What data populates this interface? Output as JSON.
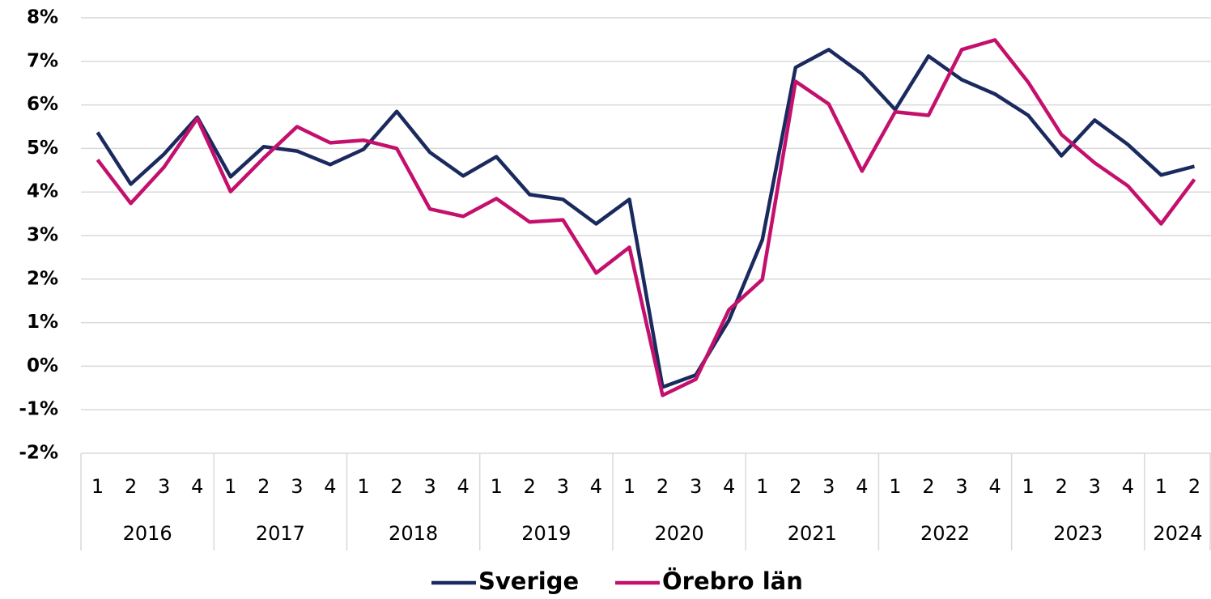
{
  "chart_data": {
    "type": "line",
    "category_groups": [
      {
        "name": "2016",
        "categories": [
          "1",
          "2",
          "3",
          "4"
        ]
      },
      {
        "name": "2017",
        "categories": [
          "1",
          "2",
          "3",
          "4"
        ]
      },
      {
        "name": "2018",
        "categories": [
          "1",
          "2",
          "3",
          "4"
        ]
      },
      {
        "name": "2019",
        "categories": [
          "1",
          "2",
          "3",
          "4"
        ]
      },
      {
        "name": "2020",
        "categories": [
          "1",
          "2",
          "3",
          "4"
        ]
      },
      {
        "name": "2021",
        "categories": [
          "1",
          "2",
          "3",
          "4"
        ]
      },
      {
        "name": "2022",
        "categories": [
          "1",
          "2",
          "3",
          "4"
        ]
      },
      {
        "name": "2023",
        "categories": [
          "1",
          "2",
          "3",
          "4"
        ]
      },
      {
        "name": "2024",
        "categories": [
          "1",
          "2"
        ]
      }
    ],
    "series": [
      {
        "name": "Sverige",
        "color": "#1b2a5e",
        "values": [
          5.37,
          4.18,
          4.87,
          5.72,
          4.35,
          5.04,
          4.94,
          4.63,
          4.98,
          5.85,
          4.91,
          4.37,
          4.81,
          3.94,
          3.83,
          3.27,
          3.83,
          -0.48,
          -0.2,
          1.06,
          2.9,
          6.86,
          7.27,
          6.71,
          5.89,
          7.12,
          6.58,
          6.25,
          5.76,
          4.83,
          5.65,
          5.09,
          4.39,
          4.59
        ]
      },
      {
        "name": "Örebro län",
        "color": "#c4106d",
        "values": [
          4.74,
          3.74,
          4.57,
          5.69,
          4.01,
          4.78,
          5.5,
          5.13,
          5.19,
          5.0,
          3.61,
          3.44,
          3.85,
          3.31,
          3.36,
          2.14,
          2.73,
          -0.67,
          -0.3,
          1.3,
          1.99,
          6.54,
          6.02,
          4.48,
          5.84,
          5.76,
          7.27,
          7.49,
          6.52,
          5.32,
          4.67,
          4.14,
          3.27,
          4.29
        ]
      }
    ],
    "ylim": [
      -2,
      8
    ],
    "yticks": [
      {
        "value": -2,
        "label": "-2%"
      },
      {
        "value": -1,
        "label": "-1%"
      },
      {
        "value": 0,
        "label": "0%"
      },
      {
        "value": 1,
        "label": "1%"
      },
      {
        "value": 2,
        "label": "2%"
      },
      {
        "value": 3,
        "label": "3%"
      },
      {
        "value": 4,
        "label": "4%"
      },
      {
        "value": 5,
        "label": "5%"
      },
      {
        "value": 6,
        "label": "6%"
      },
      {
        "value": 7,
        "label": "7%"
      },
      {
        "value": 8,
        "label": "8%"
      }
    ],
    "grid": true,
    "legend": "bottom"
  }
}
